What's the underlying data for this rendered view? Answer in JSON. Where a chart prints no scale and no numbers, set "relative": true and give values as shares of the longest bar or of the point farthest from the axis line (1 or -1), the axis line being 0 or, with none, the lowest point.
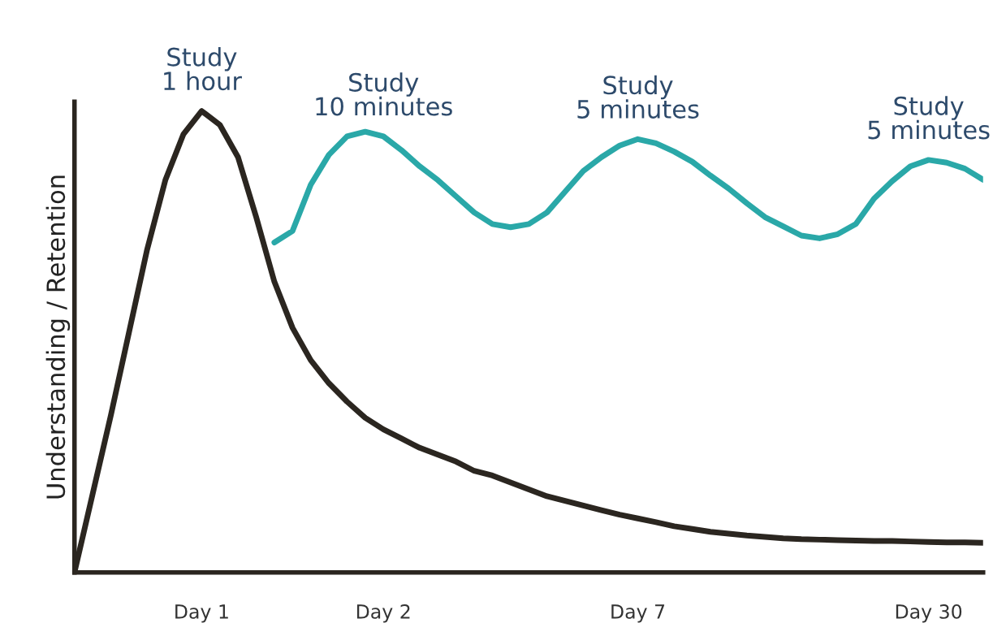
{
  "chart_data": {
    "type": "line",
    "relative": true,
    "ylabel": "Understanding / Retention",
    "categories": [
      null,
      null,
      null,
      null,
      null,
      null,
      null,
      "Day 1",
      null,
      null,
      null,
      null,
      null,
      null,
      null,
      null,
      null,
      "Day 2",
      null,
      null,
      null,
      null,
      null,
      null,
      null,
      null,
      null,
      null,
      null,
      null,
      null,
      "Day 7",
      null,
      null,
      null,
      null,
      null,
      null,
      null,
      null,
      null,
      null,
      null,
      null,
      null,
      null,
      null,
      "Day 30",
      null,
      null,
      null
    ],
    "series": [
      {
        "color": "#2b2620",
        "values": [
          0,
          0.17,
          0.34,
          0.52,
          0.7,
          0.85,
          0.95,
          1.0,
          0.97,
          0.9,
          0.77,
          0.63,
          0.53,
          0.46,
          0.41,
          0.37,
          0.335,
          0.31,
          0.29,
          0.27,
          0.255,
          0.24,
          0.22,
          0.21,
          0.195,
          0.18,
          0.165,
          0.155,
          0.145,
          0.135,
          0.125,
          0.117,
          0.109,
          0.1,
          0.094,
          0.088,
          0.084,
          0.08,
          0.077,
          0.074,
          0.072,
          0.071,
          0.07,
          0.069,
          0.068,
          0.068,
          0.067,
          0.066,
          0.065,
          0.065,
          0.064
        ]
      },
      {
        "color": "#2aa8a8",
        "values": [
          null,
          null,
          null,
          null,
          null,
          null,
          null,
          null,
          null,
          null,
          null,
          0.715,
          0.74,
          0.84,
          0.905,
          0.945,
          0.955,
          0.945,
          0.915,
          0.88,
          0.85,
          0.815,
          0.78,
          0.755,
          0.748,
          0.755,
          0.78,
          0.825,
          0.87,
          0.9,
          0.925,
          0.939,
          0.93,
          0.912,
          0.89,
          0.86,
          0.832,
          0.8,
          0.77,
          0.75,
          0.73,
          0.724,
          0.733,
          0.755,
          0.81,
          0.848,
          0.88,
          0.894,
          0.888,
          0.875,
          0.851
        ]
      }
    ],
    "annotations": [
      {
        "text": "Study\n1 hour",
        "x": "Day 1",
        "y": 1.0
      },
      {
        "text": "Study\n10 minutes",
        "x": "Day 2",
        "y": 0.945
      },
      {
        "text": "Study\n5 minutes",
        "x": "Day 7",
        "y": 0.939
      },
      {
        "text": "Study\n5 minutes",
        "x": "Day 30",
        "y": 0.894
      }
    ],
    "grid": false,
    "legend": false
  }
}
